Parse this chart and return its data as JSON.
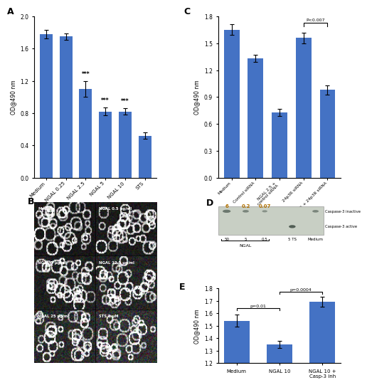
{
  "panel_A": {
    "categories": [
      "Medium",
      "NGAL 0.25",
      "NGAL 2.5",
      "NGAL 5",
      "NGAL 10",
      "STS"
    ],
    "values": [
      1.78,
      1.75,
      1.1,
      0.82,
      0.82,
      0.52
    ],
    "errors": [
      0.05,
      0.04,
      0.1,
      0.05,
      0.04,
      0.04
    ],
    "bar_color": "#4472C4",
    "ylabel": "OD@490 nm",
    "ylim": [
      0,
      2.0
    ],
    "yticks": [
      0,
      0.4,
      0.8,
      1.2,
      1.6,
      2.0
    ],
    "sig_labels": [
      "",
      "",
      "***",
      "***",
      "***",
      ""
    ],
    "label": "A"
  },
  "panel_C": {
    "categories": [
      "Medium",
      "Control siRNA",
      "NGAL 2.5 +\ncontrol siRNA",
      "24p3R siRNA",
      "NGAL 2.5 + 24p3R siRNA"
    ],
    "values": [
      1.65,
      1.33,
      0.73,
      1.56,
      0.98
    ],
    "errors": [
      0.06,
      0.04,
      0.04,
      0.06,
      0.05
    ],
    "bar_color": "#4472C4",
    "ylabel": "OD@490 nm",
    "ylim": [
      0,
      1.8
    ],
    "yticks": [
      0,
      0.3,
      0.6,
      0.9,
      1.2,
      1.5,
      1.8
    ],
    "sig_text": "P<0.007",
    "label": "C"
  },
  "panel_E": {
    "categories": [
      "Medium",
      "NGAL 10",
      "NGAL 10 +\nCasp-3 inh"
    ],
    "values": [
      1.54,
      1.35,
      1.69
    ],
    "errors": [
      0.05,
      0.03,
      0.04
    ],
    "bar_color": "#4472C4",
    "ylabel": "OD@490 nm",
    "ylim": [
      1.2,
      1.8
    ],
    "yticks": [
      1.2,
      1.3,
      1.4,
      1.5,
      1.6,
      1.7,
      1.8
    ],
    "sig_text_1": "p=0.01",
    "sig_text_2": "p=0.0004",
    "label": "E"
  },
  "panel_B_labels": [
    [
      "Medium",
      "NGAL 0.5 μg/ml"
    ],
    [
      "NGAL 5 μg/ml",
      "NGAL 12.5 μg/ml"
    ],
    [
      "NGAL 25 μg/ml",
      "STS 2 μM"
    ]
  ],
  "panel_D": {
    "numbers": [
      "6",
      "0.2",
      "0.07"
    ],
    "lane_labels": [
      "50",
      "5",
      "0.5",
      "5 TS",
      "Medium"
    ],
    "bracket_label": "NGAL",
    "right_labels": [
      "Caspase-3 inactive",
      "Caspase-3 active"
    ],
    "label": "D"
  }
}
